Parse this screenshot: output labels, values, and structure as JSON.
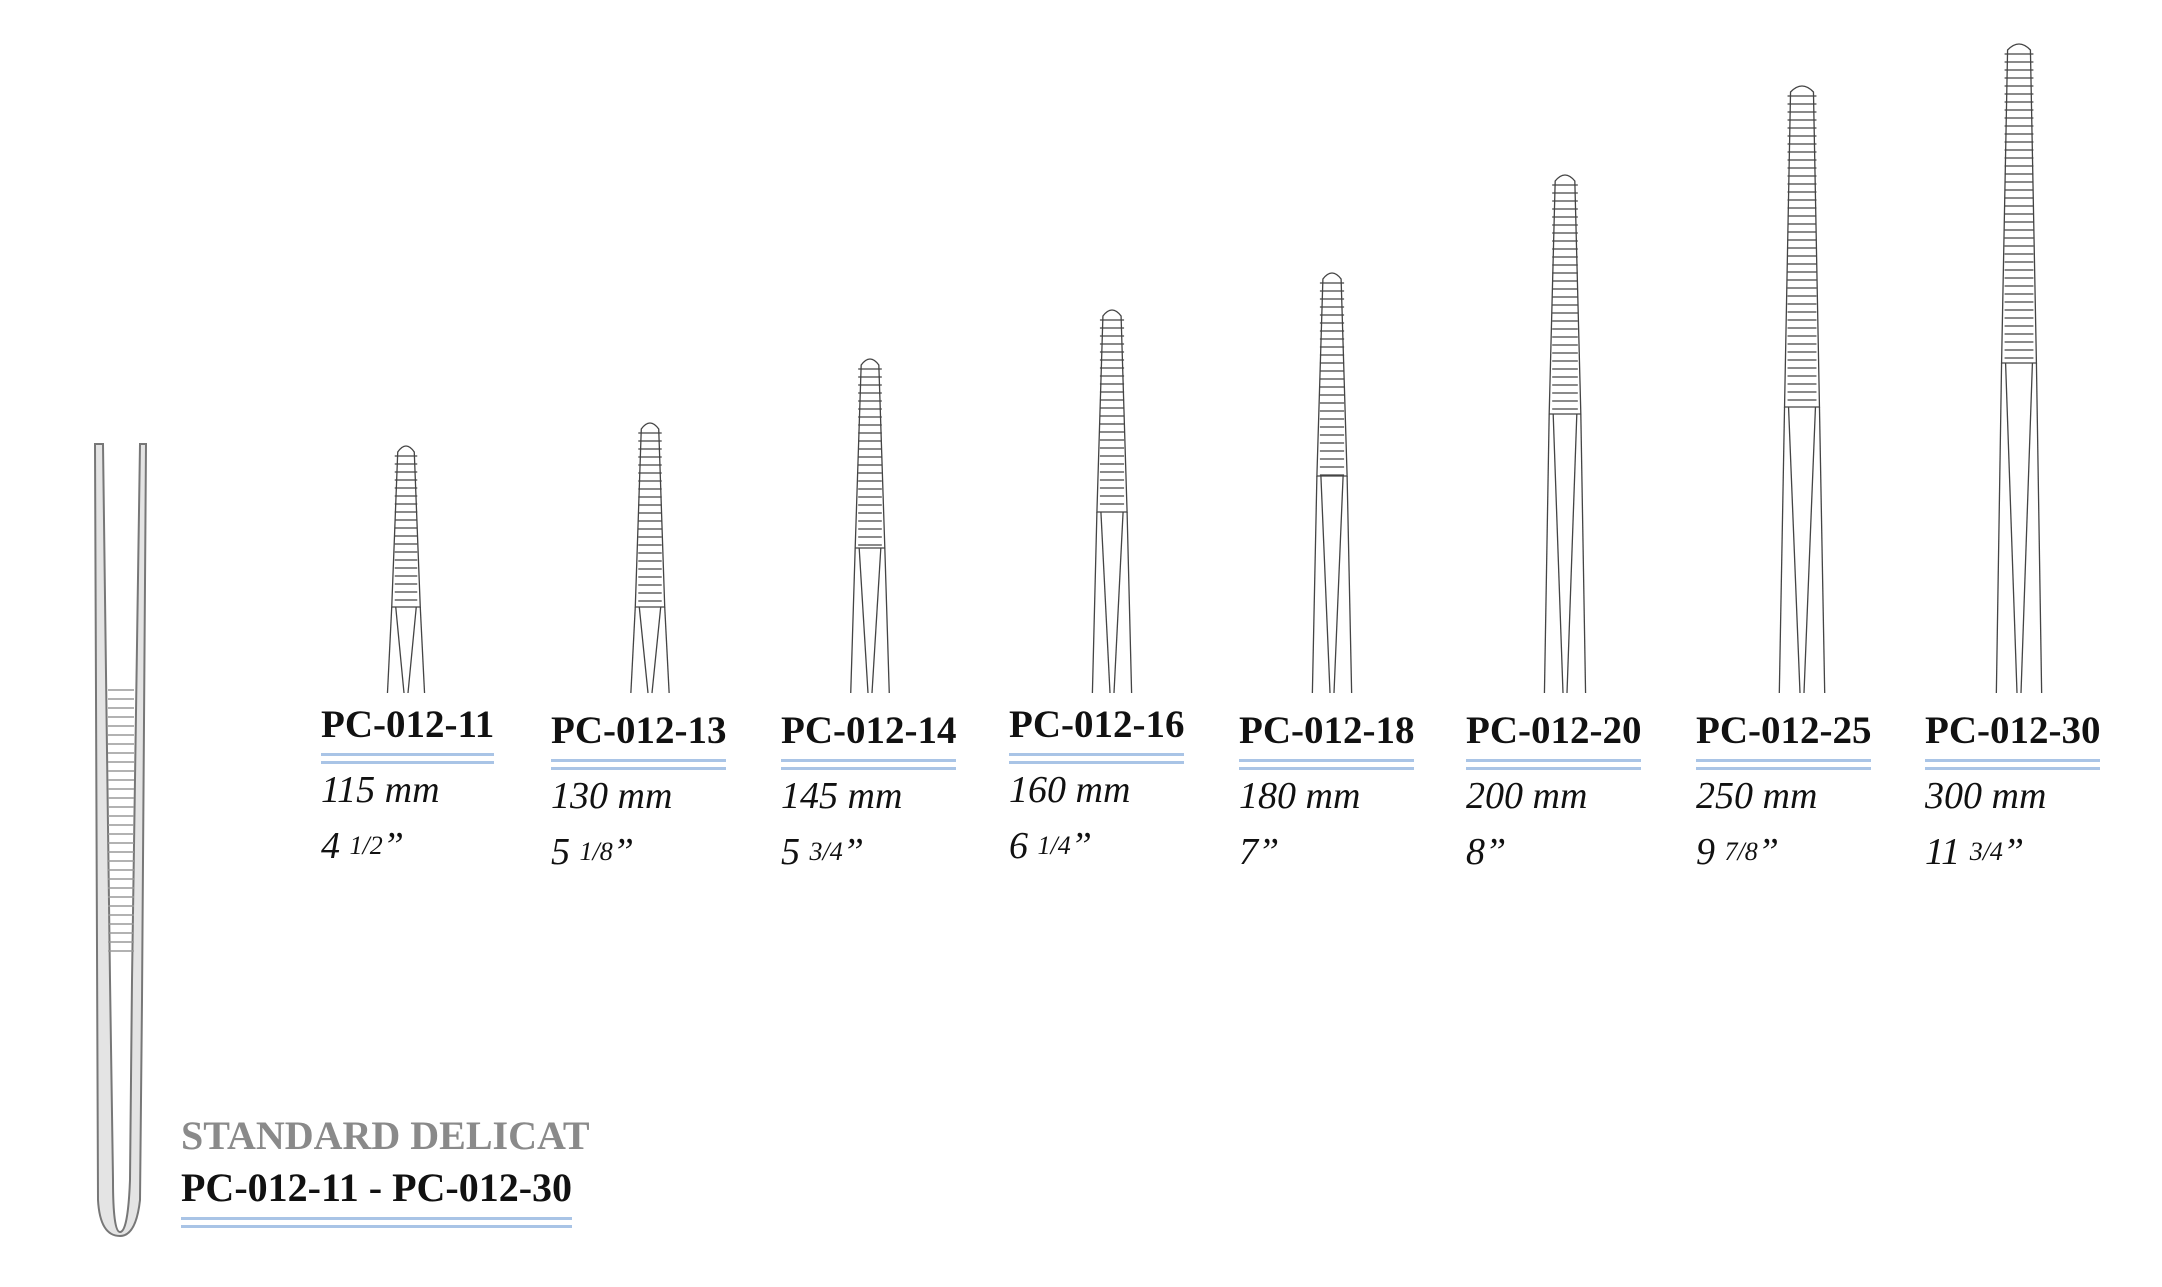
{
  "catalog": {
    "series_title": "STANDARD DELICAT",
    "range": "PC-012-11 - PC-012-30",
    "items": [
      {
        "code": "PC-012-11",
        "mm": "115 mm",
        "inch_whole": "4",
        "inch_fraction": "1/2",
        "inch_mark": "”"
      },
      {
        "code": "PC-012-13",
        "mm": "130 mm",
        "inch_whole": "5",
        "inch_fraction": "1/8",
        "inch_mark": "”"
      },
      {
        "code": "PC-012-14",
        "mm": "145 mm",
        "inch_whole": "5",
        "inch_fraction": "3/4",
        "inch_mark": "”"
      },
      {
        "code": "PC-012-16",
        "mm": "160 mm",
        "inch_whole": "6",
        "inch_fraction": "1/4",
        "inch_mark": "”"
      },
      {
        "code": "PC-012-18",
        "mm": "180 mm",
        "inch_whole": "7",
        "inch_fraction": null,
        "inch_mark": "”"
      },
      {
        "code": "PC-012-20",
        "mm": "200 mm",
        "inch_whole": "8",
        "inch_fraction": null,
        "inch_mark": "”"
      },
      {
        "code": "PC-012-25",
        "mm": "250 mm",
        "inch_whole": "9",
        "inch_fraction": "7/8",
        "inch_mark": "”"
      },
      {
        "code": "PC-012-30",
        "mm": "300 mm",
        "inch_whole": "11",
        "inch_fraction": "3/4",
        "inch_mark": "”"
      }
    ]
  }
}
